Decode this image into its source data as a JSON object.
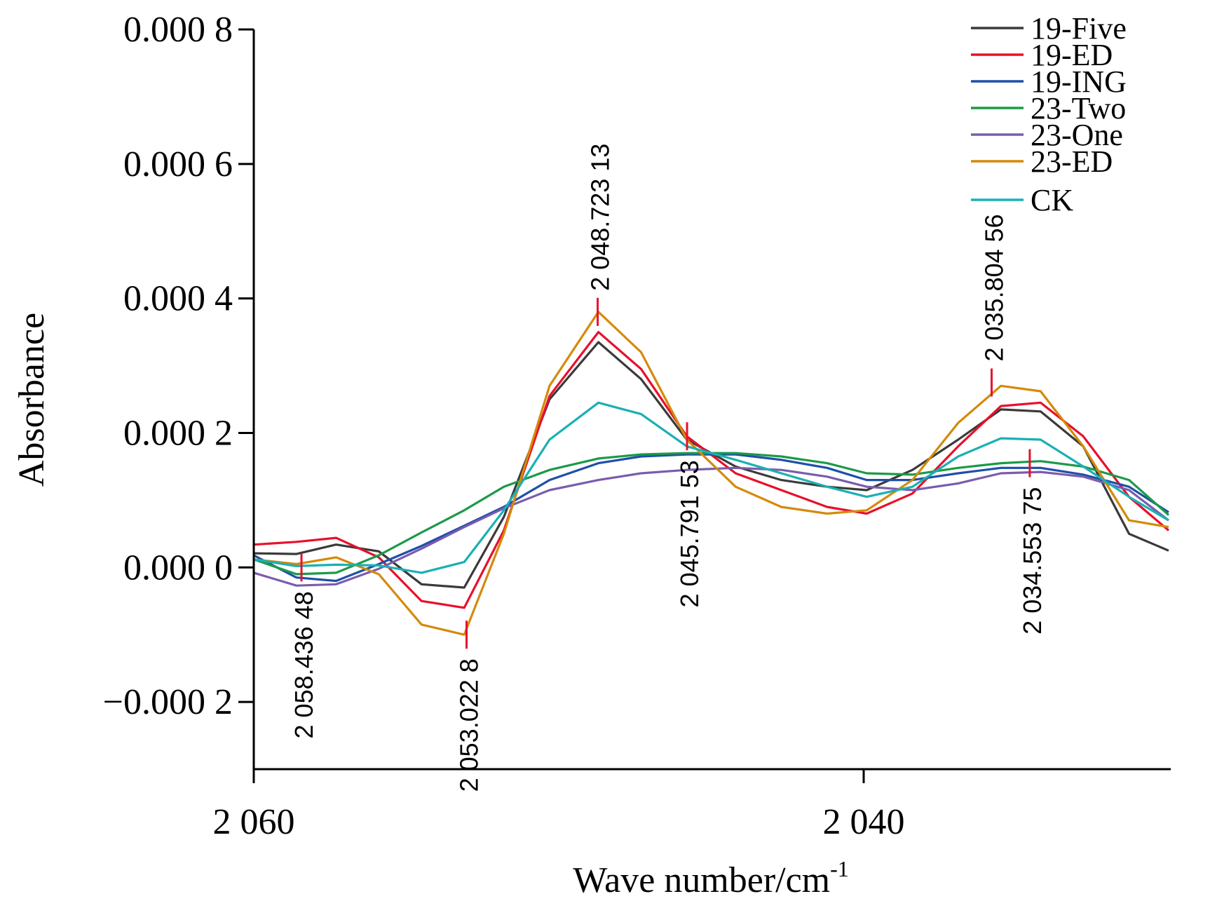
{
  "chart_data": {
    "type": "line",
    "xlabel": "Wave number/cm",
    "xlabel_sup": "-1",
    "ylabel": "Absorbance",
    "xlim": [
      2060,
      2030
    ],
    "ylim": [
      -0.0003,
      0.0008
    ],
    "x_ticks": [
      {
        "value": 2060,
        "label": "2 060"
      },
      {
        "value": 2040,
        "label": "2 040"
      }
    ],
    "y_ticks": [
      {
        "value": -0.0002,
        "label": "−0.000 2"
      },
      {
        "value": 0.0,
        "label": "0.000 0"
      },
      {
        "value": 0.0002,
        "label": "0.000 2"
      },
      {
        "value": 0.0004,
        "label": "0.000 4"
      },
      {
        "value": 0.0006,
        "label": "0.000 6"
      },
      {
        "value": 0.0008,
        "label": "0.000 8"
      }
    ],
    "legend_position": "top-right",
    "x": [
      2060.0,
      2058.6,
      2057.3,
      2055.9,
      2054.5,
      2053.1,
      2051.8,
      2050.3,
      2048.7,
      2047.3,
      2045.8,
      2044.2,
      2042.7,
      2041.2,
      2039.9,
      2038.4,
      2036.9,
      2035.5,
      2034.2,
      2032.8,
      2031.3,
      2030.0
    ],
    "series": [
      {
        "name": "19-Five",
        "color": "#3a3a3a",
        "values": [
          2.1e-05,
          2e-05,
          3.4e-05,
          2.4e-05,
          -2.5e-05,
          -3e-05,
          7.5e-05,
          0.00025,
          0.000335,
          0.00028,
          0.00019,
          0.00015,
          0.00013,
          0.00012,
          0.000115,
          0.000145,
          0.00019,
          0.000235,
          0.000232,
          0.00018,
          5e-05,
          2.5e-05
        ]
      },
      {
        "name": "19-ED",
        "color": "#e8102a",
        "values": [
          3.4e-05,
          3.8e-05,
          4.4e-05,
          1.5e-05,
          -5e-05,
          -6e-05,
          5.5e-05,
          0.000255,
          0.00035,
          0.000295,
          0.000195,
          0.00014,
          0.000115,
          9e-05,
          8e-05,
          0.00011,
          0.00018,
          0.00024,
          0.000245,
          0.000195,
          0.000105,
          5.5e-05
        ]
      },
      {
        "name": "19-ING",
        "color": "#1f4fa8",
        "values": [
          1.8e-05,
          -1.5e-05,
          -2e-05,
          5e-06,
          3.2e-05,
          6.2e-05,
          9e-05,
          0.00013,
          0.000155,
          0.000165,
          0.000168,
          0.000168,
          0.00016,
          0.000148,
          0.00013,
          0.00013,
          0.00014,
          0.000148,
          0.000148,
          0.000138,
          0.00012,
          8.2e-05
        ]
      },
      {
        "name": "23-Two",
        "color": "#1b9a48",
        "values": [
          1.2e-05,
          -1e-05,
          -8e-06,
          1.8e-05,
          5.2e-05,
          8.5e-05,
          0.00012,
          0.000145,
          0.000162,
          0.000168,
          0.00017,
          0.00017,
          0.000165,
          0.000155,
          0.00014,
          0.000138,
          0.000148,
          0.000155,
          0.000158,
          0.00015,
          0.00013,
          7.8e-05
        ]
      },
      {
        "name": "23-One",
        "color": "#7a5cae",
        "values": [
          -8e-06,
          -2.7e-05,
          -2.5e-05,
          -2e-06,
          2.8e-05,
          6e-05,
          8.8e-05,
          0.000115,
          0.00013,
          0.00014,
          0.000145,
          0.000148,
          0.000145,
          0.000135,
          0.00012,
          0.000115,
          0.000125,
          0.00014,
          0.000142,
          0.000135,
          0.000115,
          7e-05
        ]
      },
      {
        "name": "23-ED",
        "color": "#d48a0a",
        "values": [
          1.2e-05,
          5e-06,
          1.5e-05,
          -1e-05,
          -8.5e-05,
          -0.0001,
          5e-05,
          0.00027,
          0.00038,
          0.00032,
          0.00019,
          0.00012,
          9e-05,
          8e-05,
          8.5e-05,
          0.00013,
          0.000215,
          0.00027,
          0.000262,
          0.00018,
          7e-05,
          6e-05
        ]
      },
      {
        "name": "CK",
        "color": "#1ab0b4",
        "values": [
          1.2e-05,
          2e-06,
          4e-06,
          3e-06,
          -8e-06,
          8e-06,
          8.5e-05,
          0.00019,
          0.000245,
          0.000228,
          0.00018,
          0.00016,
          0.00014,
          0.00012,
          0.000105,
          0.00012,
          0.000165,
          0.000192,
          0.00019,
          0.00015,
          0.000105,
          7e-05
        ]
      }
    ],
    "annotations": [
      {
        "label": "2 058.436 48",
        "x": 2058.436,
        "y": 0.0,
        "side": "below"
      },
      {
        "label": "2 053.022 8",
        "x": 2053.023,
        "y": -0.0001,
        "side": "below"
      },
      {
        "label": "2 048.723 13",
        "x": 2048.723,
        "y": 0.00038,
        "side": "above"
      },
      {
        "label": "2 045.791 53",
        "x": 2045.792,
        "y": 0.000195,
        "side": "below"
      },
      {
        "label": "2 035.804 56",
        "x": 2035.805,
        "y": 0.000275,
        "side": "above"
      },
      {
        "label": "2 034.553 75",
        "x": 2034.554,
        "y": 0.000155,
        "side": "below"
      }
    ]
  }
}
